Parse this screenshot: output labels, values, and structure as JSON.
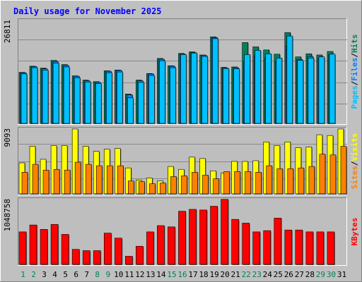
{
  "title": "Daily usage for November 2025",
  "colors": {
    "background": "#c0c0c0",
    "plot_bg": "#bebebe",
    "hits": "#00805c",
    "files": "#0080ff",
    "pages": "#00c0ff",
    "visits": "#ffff00",
    "sites": "#ff8000",
    "kbytes": "#ff0000",
    "title": "#0000ff",
    "day_normal": "#000000",
    "day_weekend": "#00805c",
    "grid": "#888888"
  },
  "chart_data": [
    {
      "type": "bar",
      "panel": "hits-files-pages",
      "max_label": "26811",
      "ylim": [
        0,
        26811
      ],
      "grid": true,
      "legend": [
        "Pages",
        "Files",
        "Hits"
      ],
      "categories": [
        "1",
        "2",
        "3",
        "4",
        "5",
        "6",
        "7",
        "8",
        "9",
        "10",
        "11",
        "12",
        "13",
        "14",
        "15",
        "16",
        "17",
        "18",
        "19",
        "20",
        "21",
        "22",
        "23",
        "24",
        "25",
        "26",
        "27",
        "28",
        "29",
        "30",
        "31"
      ],
      "series": [
        {
          "name": "Hits",
          "values": [
            13200,
            14800,
            14300,
            16300,
            15200,
            12300,
            11200,
            10800,
            13600,
            13800,
            7600,
            11200,
            12900,
            16800,
            14900,
            18100,
            18500,
            17700,
            22400,
            14500,
            14600,
            20900,
            19800,
            19000,
            17900,
            23500,
            17200,
            18000,
            17700,
            18600,
            0
          ]
        },
        {
          "name": "Files",
          "values": [
            13100,
            14700,
            14100,
            16000,
            15000,
            12200,
            11000,
            10600,
            13500,
            13700,
            7400,
            11000,
            12800,
            16600,
            14800,
            17900,
            18300,
            17600,
            22200,
            14300,
            14400,
            16000,
            17500,
            17000,
            16000,
            20100,
            16500,
            17300,
            16900,
            17800,
            0
          ]
        },
        {
          "name": "Pages",
          "values": [
            12800,
            14400,
            13800,
            15600,
            14600,
            11800,
            10700,
            10300,
            13100,
            13300,
            6600,
            10600,
            12400,
            16200,
            14400,
            17800,
            18200,
            17300,
            21900,
            14200,
            14100,
            17800,
            18900,
            18000,
            16900,
            22600,
            16300,
            16900,
            17200,
            17900,
            0
          ]
        }
      ]
    },
    {
      "type": "bar",
      "panel": "visits-sites",
      "max_label": "9093",
      "ylim": [
        0,
        9093
      ],
      "grid": true,
      "legend": [
        "Sites",
        "Visits"
      ],
      "categories": [
        "1",
        "2",
        "3",
        "4",
        "5",
        "6",
        "7",
        "8",
        "9",
        "10",
        "11",
        "12",
        "13",
        "14",
        "15",
        "16",
        "17",
        "18",
        "19",
        "20",
        "21",
        "22",
        "23",
        "24",
        "25",
        "26",
        "27",
        "28",
        "29",
        "30",
        "31"
      ],
      "series": [
        {
          "name": "Visits",
          "values": [
            4300,
            6600,
            4800,
            6700,
            6700,
            9000,
            6600,
            5900,
            6200,
            6300,
            3600,
            1900,
            2200,
            1800,
            3800,
            3400,
            5100,
            4900,
            3200,
            2900,
            4500,
            4500,
            4600,
            7200,
            6700,
            7200,
            6400,
            6500,
            8200,
            8100,
            9000
          ]
        },
        {
          "name": "Sites",
          "values": [
            3000,
            4100,
            3300,
            3400,
            3300,
            4400,
            4100,
            3900,
            3900,
            3900,
            1800,
            1700,
            1400,
            1500,
            2400,
            2500,
            3000,
            2600,
            2100,
            3100,
            3100,
            3100,
            3000,
            3900,
            3500,
            3500,
            3600,
            3800,
            5500,
            5400,
            6600
          ]
        }
      ]
    },
    {
      "type": "bar",
      "panel": "kbytes",
      "max_label": "1048758",
      "ylim": [
        0,
        1048758
      ],
      "grid": false,
      "legend": [
        "KBytes"
      ],
      "categories": [
        "1",
        "2",
        "3",
        "4",
        "5",
        "6",
        "7",
        "8",
        "9",
        "10",
        "11",
        "12",
        "13",
        "14",
        "15",
        "16",
        "17",
        "18",
        "19",
        "20",
        "21",
        "22",
        "23",
        "24",
        "25",
        "26",
        "27",
        "28",
        "29",
        "30",
        "31"
      ],
      "series": [
        {
          "name": "KBytes",
          "values": [
            520000,
            630000,
            560000,
            640000,
            480000,
            240000,
            220000,
            220000,
            500000,
            420000,
            130000,
            290000,
            520000,
            620000,
            600000,
            850000,
            880000,
            870000,
            930000,
            1040000,
            720000,
            660000,
            520000,
            540000,
            740000,
            550000,
            550000,
            520000,
            520000,
            520000,
            0
          ]
        }
      ]
    }
  ],
  "days": [
    {
      "label": "1",
      "weekend": true
    },
    {
      "label": "2",
      "weekend": true
    },
    {
      "label": "3",
      "weekend": false
    },
    {
      "label": "4",
      "weekend": false
    },
    {
      "label": "5",
      "weekend": false
    },
    {
      "label": "6",
      "weekend": false
    },
    {
      "label": "7",
      "weekend": false
    },
    {
      "label": "8",
      "weekend": true
    },
    {
      "label": "9",
      "weekend": true
    },
    {
      "label": "10",
      "weekend": false
    },
    {
      "label": "11",
      "weekend": false
    },
    {
      "label": "12",
      "weekend": false
    },
    {
      "label": "13",
      "weekend": false
    },
    {
      "label": "14",
      "weekend": false
    },
    {
      "label": "15",
      "weekend": true
    },
    {
      "label": "16",
      "weekend": true
    },
    {
      "label": "17",
      "weekend": false
    },
    {
      "label": "18",
      "weekend": false
    },
    {
      "label": "19",
      "weekend": false
    },
    {
      "label": "20",
      "weekend": false
    },
    {
      "label": "21",
      "weekend": false
    },
    {
      "label": "22",
      "weekend": true
    },
    {
      "label": "23",
      "weekend": true
    },
    {
      "label": "24",
      "weekend": false
    },
    {
      "label": "25",
      "weekend": false
    },
    {
      "label": "26",
      "weekend": false
    },
    {
      "label": "27",
      "weekend": false
    },
    {
      "label": "28",
      "weekend": false
    },
    {
      "label": "29",
      "weekend": true
    },
    {
      "label": "30",
      "weekend": true
    },
    {
      "label": "31",
      "weekend": false
    }
  ]
}
